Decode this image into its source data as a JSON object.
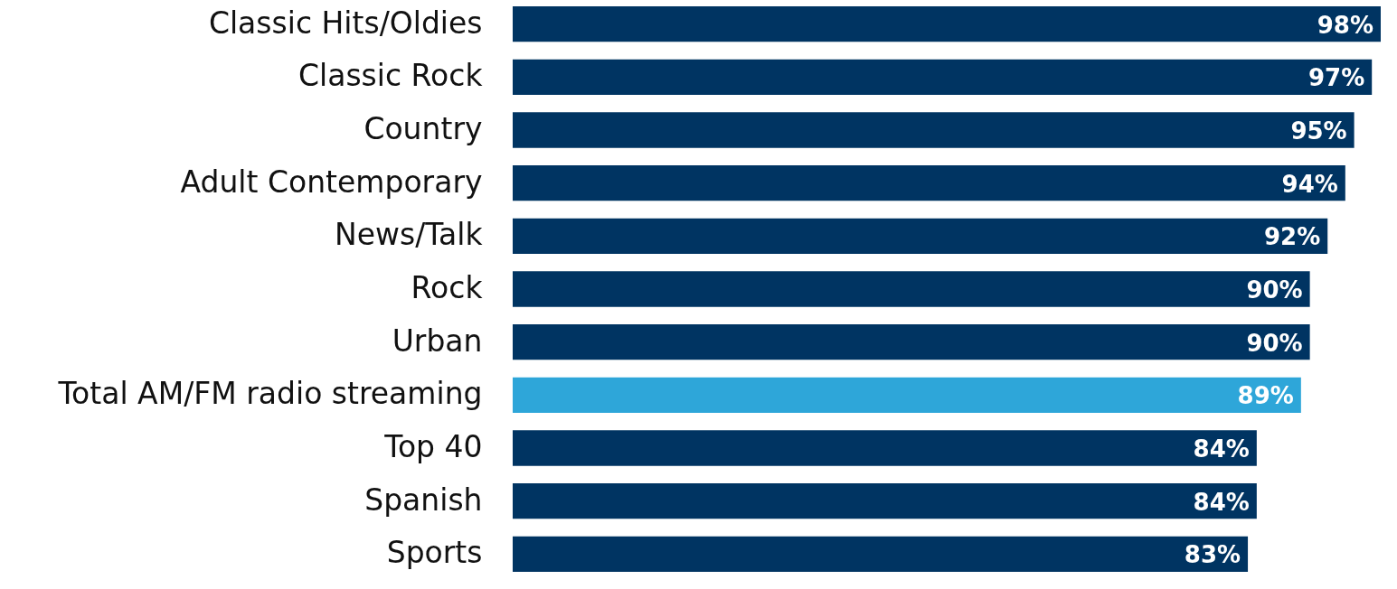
{
  "chart_data": {
    "type": "bar",
    "orientation": "horizontal",
    "categories": [
      "Classic Hits/Oldies",
      "Classic Rock",
      "Country",
      "Adult Contemporary",
      "News/Talk",
      "Rock",
      "Urban",
      "Total AM/FM radio streaming",
      "Top 40",
      "Spanish",
      "Sports"
    ],
    "values": [
      98,
      97,
      95,
      94,
      92,
      90,
      90,
      89,
      84,
      84,
      83
    ],
    "colors": [
      "#003462",
      "#003462",
      "#003462",
      "#003462",
      "#003462",
      "#003462",
      "#003462",
      "#2ea6d9",
      "#003462",
      "#003462",
      "#003462"
    ],
    "value_labels": [
      "98%",
      "97%",
      "95%",
      "94%",
      "92%",
      "90%",
      "90%",
      "89%",
      "84%",
      "84%",
      "83%"
    ]
  }
}
